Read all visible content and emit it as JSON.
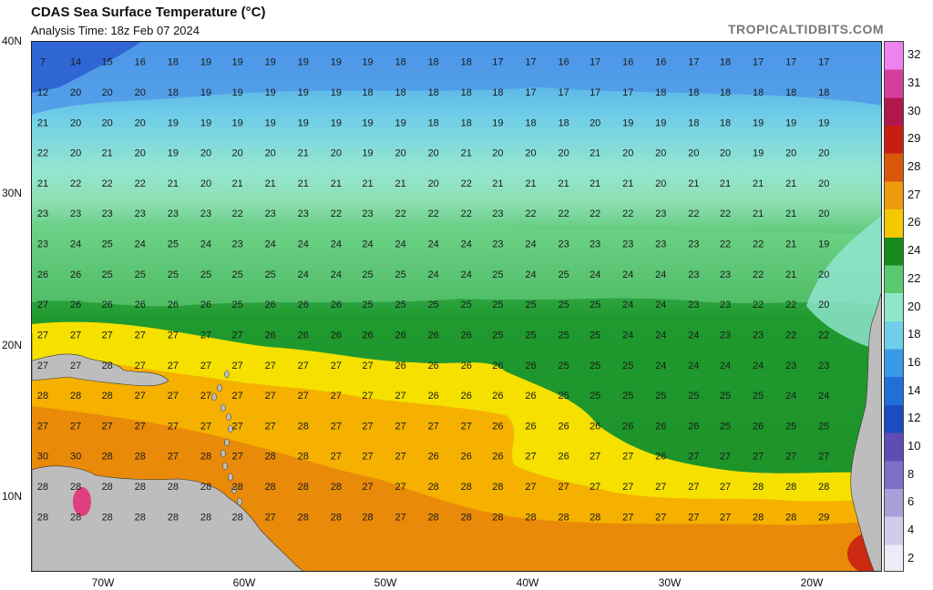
{
  "title": "CDAS Sea Surface Temperature (°C)",
  "subtitle": "Analysis Time: 18z Feb 07 2024",
  "credit": "TROPICALTIDBITS.COM",
  "lat_labels": [
    "40N",
    "30N",
    "20N",
    "10N"
  ],
  "lon_labels": [
    "70W",
    "60W",
    "50W",
    "40W",
    "30W",
    "20W"
  ],
  "colorbar": {
    "labels": [
      "32",
      "31",
      "30",
      "29",
      "28",
      "27",
      "26",
      "24",
      "22",
      "20",
      "18",
      "16",
      "14",
      "12",
      "10",
      "8",
      "6",
      "4",
      "2"
    ],
    "colors": [
      "#ee82ee",
      "#d23f9e",
      "#b0174f",
      "#c81e10",
      "#d9590a",
      "#ee9b0c",
      "#f5c800",
      "#188a1c",
      "#5cc870",
      "#8ee8c8",
      "#6fcfe8",
      "#3a9ae6",
      "#2070d8",
      "#1a4cc2",
      "#5f4db5",
      "#7e6fc6",
      "#a8a0d8",
      "#cfcbe8",
      "#ececf7"
    ]
  },
  "map_data": {
    "rows": [
      {
        "lat": 38.7,
        "values": [
          7,
          14,
          15,
          16,
          18,
          19,
          19,
          19,
          19,
          19,
          19,
          18,
          18,
          18,
          17,
          17,
          16,
          17,
          16,
          16,
          17,
          18,
          17,
          17,
          17
        ]
      },
      {
        "lat": 36.7,
        "values": [
          12,
          20,
          20,
          20,
          18,
          19,
          19,
          19,
          19,
          19,
          18,
          18,
          18,
          18,
          18,
          17,
          17,
          17,
          17,
          18,
          18,
          18,
          18,
          18,
          18
        ]
      },
      {
        "lat": 34.7,
        "values": [
          21,
          20,
          20,
          20,
          19,
          19,
          19,
          19,
          19,
          19,
          19,
          19,
          18,
          18,
          19,
          18,
          18,
          20,
          19,
          19,
          18,
          18,
          19,
          19,
          19
        ]
      },
      {
        "lat": 32.7,
        "values": [
          22,
          20,
          21,
          20,
          19,
          20,
          20,
          20,
          21,
          20,
          19,
          20,
          20,
          21,
          20,
          20,
          20,
          21,
          20,
          20,
          20,
          20,
          19,
          20,
          20
        ]
      },
      {
        "lat": 30.7,
        "values": [
          21,
          22,
          22,
          22,
          21,
          20,
          21,
          21,
          21,
          21,
          21,
          21,
          20,
          22,
          21,
          21,
          21,
          21,
          21,
          20,
          21,
          21,
          21,
          21,
          20
        ]
      },
      {
        "lat": 28.7,
        "values": [
          23,
          23,
          23,
          23,
          23,
          23,
          22,
          23,
          23,
          22,
          23,
          22,
          22,
          22,
          23,
          22,
          22,
          22,
          22,
          23,
          22,
          22,
          21,
          21,
          20
        ]
      },
      {
        "lat": 26.7,
        "values": [
          23,
          24,
          25,
          24,
          25,
          24,
          23,
          24,
          24,
          24,
          24,
          24,
          24,
          24,
          23,
          24,
          23,
          23,
          23,
          23,
          23,
          22,
          22,
          21,
          19
        ]
      },
      {
        "lat": 24.7,
        "values": [
          26,
          26,
          25,
          25,
          25,
          25,
          25,
          25,
          24,
          24,
          25,
          25,
          24,
          24,
          25,
          24,
          25,
          24,
          24,
          24,
          23,
          23,
          22,
          21,
          20
        ]
      },
      {
        "lat": 22.7,
        "values": [
          27,
          26,
          26,
          26,
          26,
          26,
          25,
          26,
          26,
          26,
          25,
          25,
          25,
          25,
          25,
          25,
          25,
          25,
          24,
          24,
          23,
          23,
          22,
          22,
          20
        ]
      },
      {
        "lat": 20.7,
        "values": [
          27,
          27,
          27,
          27,
          27,
          27,
          27,
          26,
          26,
          26,
          26,
          26,
          26,
          26,
          25,
          25,
          25,
          25,
          24,
          24,
          24,
          23,
          23,
          22,
          22
        ]
      },
      {
        "lat": 18.7,
        "values": [
          27,
          27,
          28,
          27,
          27,
          27,
          27,
          27,
          27,
          27,
          27,
          26,
          26,
          26,
          26,
          26,
          25,
          25,
          25,
          24,
          24,
          24,
          24,
          23,
          23
        ]
      },
      {
        "lat": 16.7,
        "values": [
          28,
          28,
          28,
          27,
          27,
          27,
          27,
          27,
          27,
          27,
          27,
          27,
          26,
          26,
          26,
          26,
          25,
          25,
          25,
          25,
          25,
          25,
          25,
          24,
          24
        ]
      },
      {
        "lat": 14.7,
        "values": [
          27,
          27,
          27,
          27,
          27,
          27,
          27,
          27,
          28,
          27,
          27,
          27,
          27,
          27,
          26,
          26,
          26,
          26,
          26,
          26,
          26,
          25,
          26,
          25,
          25
        ]
      },
      {
        "lat": 12.7,
        "values": [
          30,
          30,
          28,
          28,
          27,
          28,
          27,
          28,
          28,
          27,
          27,
          27,
          26,
          26,
          26,
          27,
          26,
          27,
          27,
          26,
          27,
          27,
          27,
          27,
          27
        ]
      },
      {
        "lat": 10.7,
        "values": [
          28,
          28,
          28,
          28,
          28,
          28,
          28,
          28,
          28,
          28,
          27,
          27,
          28,
          28,
          28,
          27,
          27,
          27,
          27,
          27,
          27,
          27,
          28,
          28,
          28
        ]
      },
      {
        "lat": 8.7,
        "values": [
          28,
          28,
          28,
          28,
          28,
          28,
          28,
          27,
          28,
          28,
          28,
          27,
          28,
          28,
          28,
          28,
          28,
          28,
          27,
          27,
          27,
          27,
          28,
          28,
          29
        ]
      }
    ],
    "cols_lon": [
      -75.3,
      -72.9,
      -70.6,
      -68.2,
      -65.8,
      -63.4,
      -61.1,
      -58.7,
      -56.3,
      -53.9,
      -51.6,
      -49.2,
      -46.8,
      -44.4,
      -42.1,
      -39.7,
      -37.3,
      -35.0,
      -32.6,
      -30.2,
      -27.8,
      -25.5,
      -23.1,
      -20.7,
      -18.3
    ]
  }
}
